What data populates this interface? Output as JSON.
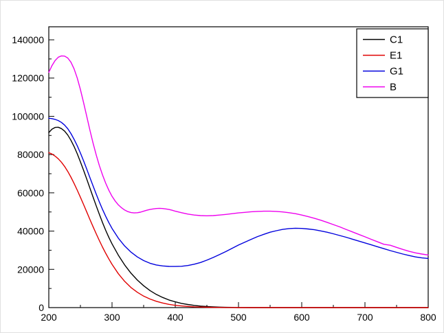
{
  "chart_data": {
    "type": "line",
    "title": "",
    "xlabel": "",
    "ylabel": "",
    "xlim": [
      200,
      800
    ],
    "ylim": [
      0,
      140000
    ],
    "xticks": [
      200,
      300,
      400,
      500,
      600,
      700,
      800
    ],
    "yticks": [
      0,
      20000,
      40000,
      60000,
      80000,
      100000,
      120000,
      140000
    ],
    "grid": false,
    "legend_position": "top-right",
    "series": [
      {
        "name": "C1",
        "color": "#000000",
        "points": [
          [
            200,
            91500
          ],
          [
            205,
            93300
          ],
          [
            210,
            94200
          ],
          [
            215,
            94300
          ],
          [
            220,
            93600
          ],
          [
            225,
            92300
          ],
          [
            230,
            90200
          ],
          [
            235,
            87500
          ],
          [
            240,
            84200
          ],
          [
            245,
            80400
          ],
          [
            250,
            76200
          ],
          [
            255,
            71800
          ],
          [
            260,
            67200
          ],
          [
            265,
            62500
          ],
          [
            270,
            57800
          ],
          [
            275,
            53200
          ],
          [
            280,
            48700
          ],
          [
            285,
            44400
          ],
          [
            290,
            40400
          ],
          [
            295,
            36700
          ],
          [
            300,
            33300
          ],
          [
            310,
            27400
          ],
          [
            320,
            22300
          ],
          [
            330,
            18000
          ],
          [
            340,
            14400
          ],
          [
            350,
            11400
          ],
          [
            360,
            8900
          ],
          [
            370,
            6900
          ],
          [
            380,
            5300
          ],
          [
            390,
            4000
          ],
          [
            400,
            3000
          ],
          [
            410,
            2200
          ],
          [
            420,
            1600
          ],
          [
            430,
            1150
          ],
          [
            440,
            800
          ],
          [
            450,
            550
          ],
          [
            460,
            370
          ],
          [
            470,
            240
          ],
          [
            480,
            150
          ],
          [
            490,
            90
          ],
          [
            500,
            50
          ],
          [
            520,
            15
          ],
          [
            540,
            5
          ],
          [
            560,
            0
          ],
          [
            600,
            0
          ],
          [
            650,
            0
          ],
          [
            700,
            0
          ],
          [
            750,
            0
          ],
          [
            800,
            0
          ]
        ]
      },
      {
        "name": "E1",
        "color": "#e00000",
        "points": [
          [
            200,
            81000
          ],
          [
            205,
            80300
          ],
          [
            210,
            79200
          ],
          [
            215,
            77800
          ],
          [
            220,
            76000
          ],
          [
            225,
            73800
          ],
          [
            230,
            71200
          ],
          [
            235,
            68200
          ],
          [
            240,
            64900
          ],
          [
            245,
            61400
          ],
          [
            250,
            57700
          ],
          [
            255,
            53900
          ],
          [
            260,
            50000
          ],
          [
            265,
            46100
          ],
          [
            270,
            42300
          ],
          [
            275,
            38600
          ],
          [
            280,
            35000
          ],
          [
            285,
            31600
          ],
          [
            290,
            28400
          ],
          [
            295,
            25400
          ],
          [
            300,
            22600
          ],
          [
            310,
            17700
          ],
          [
            320,
            13700
          ],
          [
            330,
            10500
          ],
          [
            340,
            8000
          ],
          [
            350,
            6000
          ],
          [
            360,
            4500
          ],
          [
            370,
            3300
          ],
          [
            380,
            2400
          ],
          [
            390,
            1700
          ],
          [
            400,
            1200
          ],
          [
            410,
            850
          ],
          [
            420,
            600
          ],
          [
            430,
            400
          ],
          [
            440,
            270
          ],
          [
            450,
            180
          ],
          [
            460,
            110
          ],
          [
            470,
            70
          ],
          [
            480,
            40
          ],
          [
            490,
            20
          ],
          [
            500,
            10
          ],
          [
            520,
            0
          ],
          [
            560,
            0
          ],
          [
            600,
            0
          ],
          [
            650,
            0
          ],
          [
            700,
            0
          ],
          [
            750,
            0
          ],
          [
            800,
            0
          ]
        ]
      },
      {
        "name": "G1",
        "color": "#0000dd",
        "points": [
          [
            200,
            99000
          ],
          [
            205,
            98800
          ],
          [
            210,
            98400
          ],
          [
            215,
            97800
          ],
          [
            220,
            96800
          ],
          [
            225,
            95400
          ],
          [
            230,
            93500
          ],
          [
            235,
            91000
          ],
          [
            240,
            88000
          ],
          [
            245,
            84600
          ],
          [
            250,
            80800
          ],
          [
            255,
            76700
          ],
          [
            260,
            72400
          ],
          [
            265,
            68000
          ],
          [
            270,
            63600
          ],
          [
            275,
            59300
          ],
          [
            280,
            55200
          ],
          [
            285,
            51300
          ],
          [
            290,
            47700
          ],
          [
            295,
            44400
          ],
          [
            300,
            41400
          ],
          [
            310,
            36300
          ],
          [
            320,
            32200
          ],
          [
            330,
            29000
          ],
          [
            340,
            26500
          ],
          [
            350,
            24600
          ],
          [
            360,
            23200
          ],
          [
            370,
            22300
          ],
          [
            380,
            21800
          ],
          [
            390,
            21550
          ],
          [
            400,
            21500
          ],
          [
            410,
            21600
          ],
          [
            420,
            22000
          ],
          [
            430,
            22700
          ],
          [
            440,
            23600
          ],
          [
            450,
            24800
          ],
          [
            460,
            26200
          ],
          [
            470,
            27700
          ],
          [
            480,
            29300
          ],
          [
            490,
            31000
          ],
          [
            500,
            32700
          ],
          [
            510,
            34200
          ],
          [
            520,
            35700
          ],
          [
            530,
            37100
          ],
          [
            540,
            38300
          ],
          [
            550,
            39400
          ],
          [
            560,
            40200
          ],
          [
            570,
            40900
          ],
          [
            580,
            41300
          ],
          [
            590,
            41500
          ],
          [
            600,
            41400
          ],
          [
            610,
            41100
          ],
          [
            620,
            40700
          ],
          [
            630,
            40100
          ],
          [
            640,
            39400
          ],
          [
            650,
            38600
          ],
          [
            660,
            37700
          ],
          [
            670,
            36800
          ],
          [
            680,
            35800
          ],
          [
            690,
            34800
          ],
          [
            700,
            33800
          ],
          [
            710,
            32800
          ],
          [
            720,
            31800
          ],
          [
            730,
            30800
          ],
          [
            740,
            29800
          ],
          [
            750,
            28900
          ],
          [
            760,
            28000
          ],
          [
            770,
            27200
          ],
          [
            780,
            26500
          ],
          [
            790,
            26000
          ],
          [
            800,
            25700
          ]
        ]
      },
      {
        "name": "B",
        "color": "#ee00ee",
        "points": [
          [
            200,
            123000
          ],
          [
            205,
            126500
          ],
          [
            210,
            129200
          ],
          [
            215,
            130900
          ],
          [
            220,
            131600
          ],
          [
            225,
            131500
          ],
          [
            230,
            130500
          ],
          [
            235,
            128300
          ],
          [
            240,
            124800
          ],
          [
            245,
            120000
          ],
          [
            250,
            114000
          ],
          [
            255,
            107200
          ],
          [
            260,
            100000
          ],
          [
            265,
            92800
          ],
          [
            270,
            86000
          ],
          [
            275,
            79800
          ],
          [
            280,
            74200
          ],
          [
            285,
            69300
          ],
          [
            290,
            65000
          ],
          [
            295,
            61300
          ],
          [
            300,
            58200
          ],
          [
            305,
            55700
          ],
          [
            310,
            53700
          ],
          [
            315,
            52200
          ],
          [
            320,
            51000
          ],
          [
            325,
            50200
          ],
          [
            330,
            49700
          ],
          [
            335,
            49500
          ],
          [
            340,
            49600
          ],
          [
            345,
            49900
          ],
          [
            350,
            50400
          ],
          [
            355,
            50900
          ],
          [
            360,
            51300
          ],
          [
            365,
            51600
          ],
          [
            370,
            51800
          ],
          [
            375,
            51900
          ],
          [
            380,
            51800
          ],
          [
            385,
            51600
          ],
          [
            390,
            51300
          ],
          [
            395,
            50900
          ],
          [
            400,
            50400
          ],
          [
            410,
            49600
          ],
          [
            420,
            48900
          ],
          [
            430,
            48400
          ],
          [
            440,
            48100
          ],
          [
            450,
            48000
          ],
          [
            460,
            48100
          ],
          [
            470,
            48400
          ],
          [
            480,
            48700
          ],
          [
            490,
            49100
          ],
          [
            500,
            49500
          ],
          [
            510,
            49800
          ],
          [
            520,
            50100
          ],
          [
            530,
            50300
          ],
          [
            540,
            50400
          ],
          [
            550,
            50400
          ],
          [
            560,
            50300
          ],
          [
            570,
            50000
          ],
          [
            580,
            49600
          ],
          [
            590,
            49100
          ],
          [
            600,
            48400
          ],
          [
            610,
            47600
          ],
          [
            620,
            46700
          ],
          [
            630,
            45700
          ],
          [
            640,
            44600
          ],
          [
            650,
            43400
          ],
          [
            660,
            42200
          ],
          [
            670,
            40900
          ],
          [
            680,
            39600
          ],
          [
            690,
            38300
          ],
          [
            700,
            37000
          ],
          [
            710,
            35700
          ],
          [
            720,
            34400
          ],
          [
            730,
            33100
          ],
          [
            740,
            32600
          ],
          [
            750,
            31500
          ],
          [
            760,
            30400
          ],
          [
            770,
            29400
          ],
          [
            780,
            28600
          ],
          [
            790,
            28000
          ],
          [
            800,
            27500
          ]
        ]
      }
    ],
    "axis_style": {
      "major_tick_len": 8,
      "minor_tick_len": 4,
      "x_minor_step": 50,
      "y_minor_step": 10000
    }
  }
}
